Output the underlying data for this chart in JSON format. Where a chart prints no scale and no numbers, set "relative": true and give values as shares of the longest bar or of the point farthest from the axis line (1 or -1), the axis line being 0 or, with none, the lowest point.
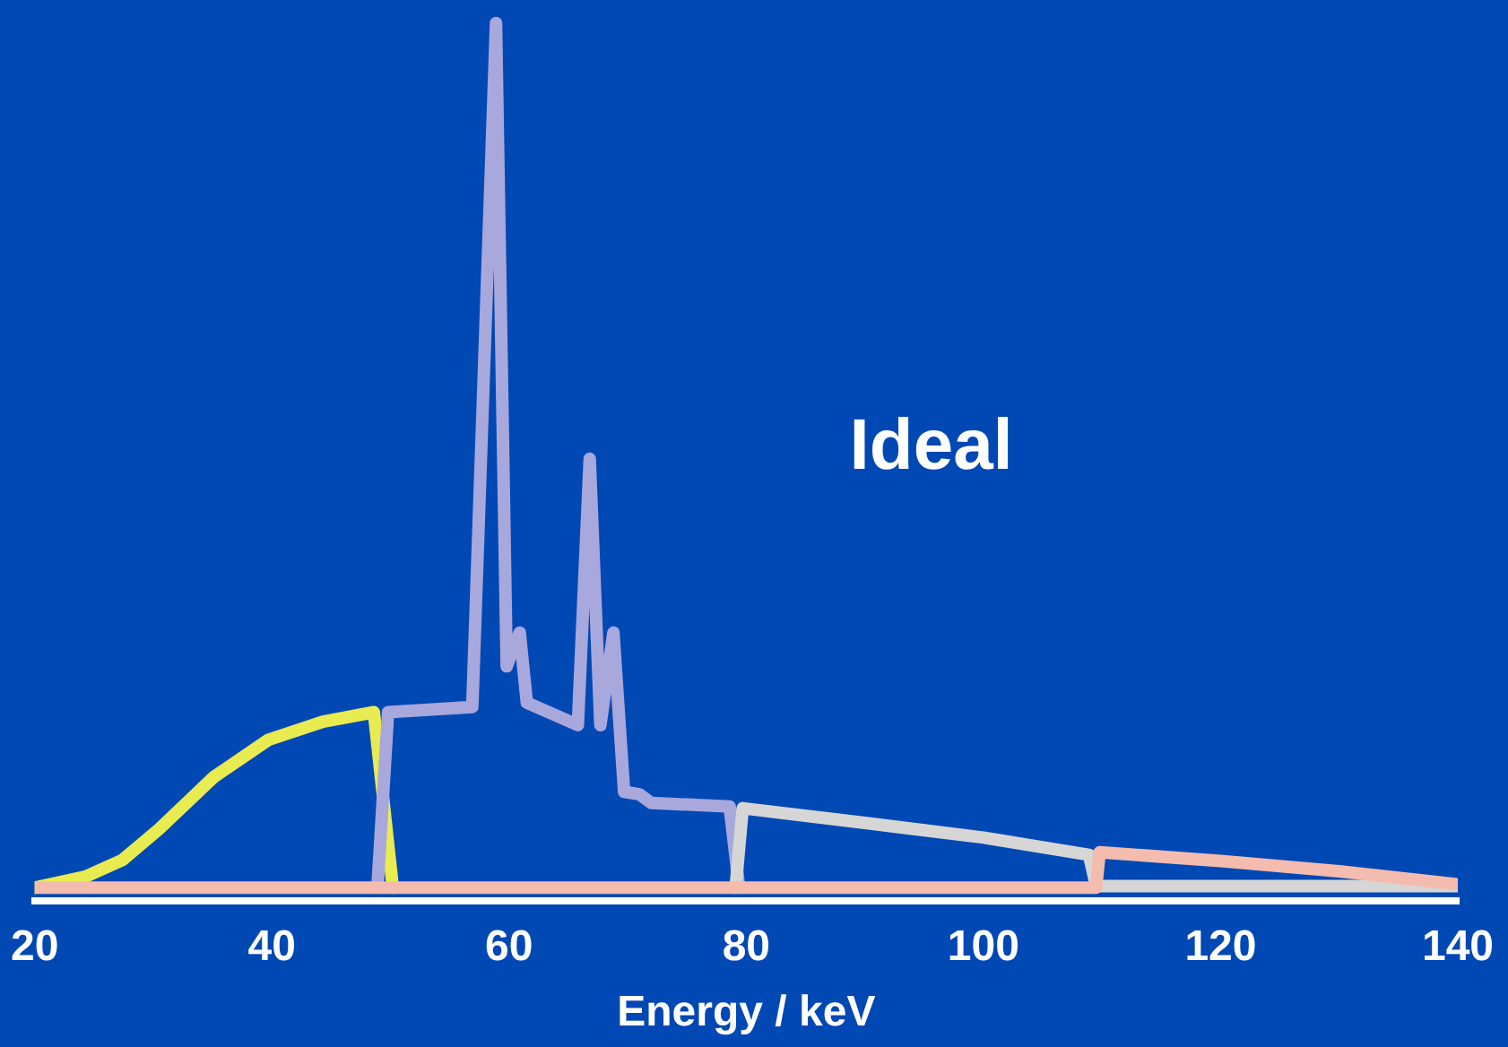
{
  "chart_data": {
    "type": "line",
    "relative": true,
    "xlabel": "Energy / keV",
    "xlim": [
      20,
      140
    ],
    "xticks": [
      20,
      40,
      60,
      80,
      100,
      120,
      140
    ],
    "grid": false,
    "legend": false,
    "marker": "none",
    "line_style": "solid",
    "annotations": [
      "Ideal"
    ],
    "series": [
      {
        "color": "#e8ec50",
        "x": [
          20,
          24.3,
          27.4,
          30.5,
          35.1,
          39.7,
          44.3,
          48.6,
          50.2
        ],
        "values": [
          0,
          0.013,
          0.032,
          0.068,
          0.128,
          0.171,
          0.192,
          0.203,
          0
        ]
      },
      {
        "color": "#a8a8dc",
        "x": [
          48.9,
          49.8,
          56.9,
          58.9,
          59.8,
          60.3,
          60.9,
          61.5,
          65.8,
          66.8,
          67.7,
          68.8,
          69.7,
          71,
          72,
          78.6,
          79.4
        ],
        "values": [
          0,
          0.203,
          0.209,
          1,
          0.256,
          0.275,
          0.295,
          0.214,
          0.188,
          0.496,
          0.188,
          0.295,
          0.111,
          0.108,
          0.098,
          0.094,
          0
        ]
      },
      {
        "color": "#d6d6d6",
        "x": [
          79.1,
          79.7,
          90,
          100,
          108.9,
          109.5,
          140
        ],
        "values": [
          0,
          0.092,
          0.075,
          0.058,
          0.038,
          0.002,
          0.002
        ]
      },
      {
        "color": "#f4bcae",
        "x": [
          20,
          109.5,
          109.8,
          120,
          130,
          140
        ],
        "values": [
          0,
          0,
          0.041,
          0.031,
          0.019,
          0.004
        ]
      }
    ]
  }
}
